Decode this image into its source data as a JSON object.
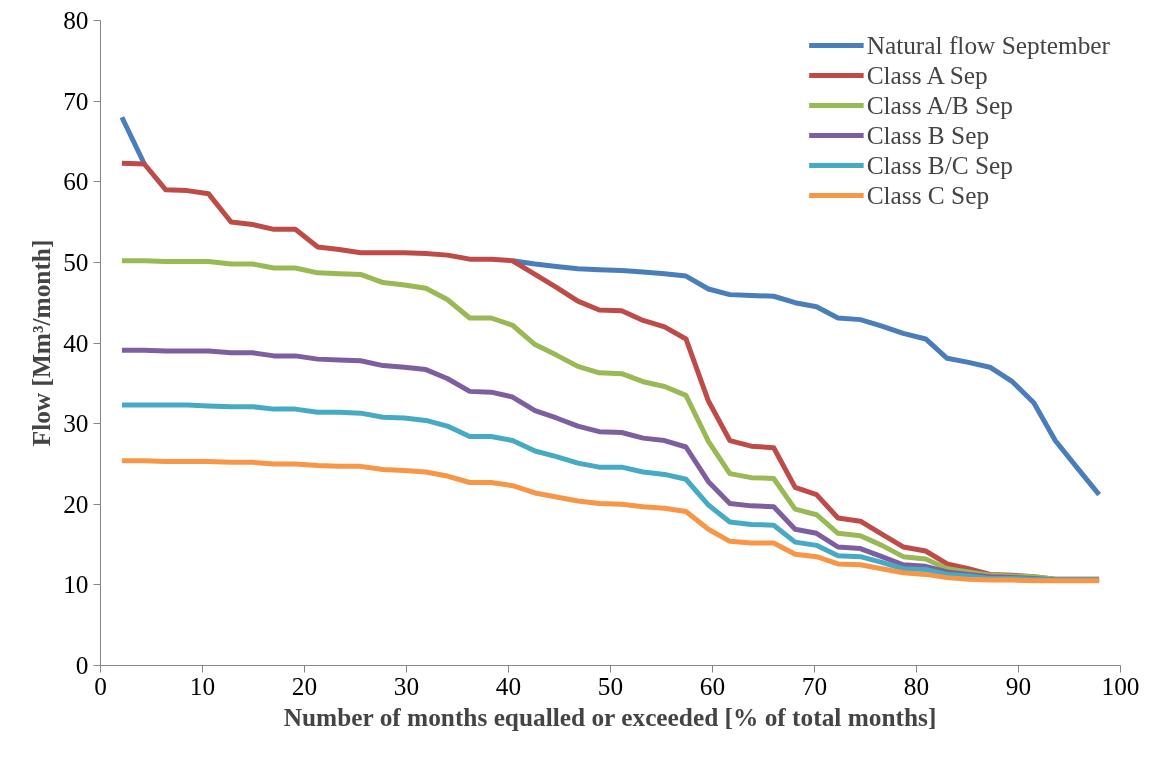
{
  "chart_data": {
    "type": "line",
    "xlabel": "Number of months equalled or exceeded [% of total months]",
    "ylabel": "Flow [Mm³/month]",
    "x": [
      2.1,
      4.3,
      6.4,
      8.5,
      10.6,
      12.8,
      14.9,
      17.0,
      19.1,
      21.3,
      23.4,
      25.5,
      27.7,
      29.8,
      31.9,
      34.0,
      36.2,
      38.3,
      40.4,
      42.6,
      44.7,
      46.8,
      48.9,
      51.1,
      53.2,
      55.3,
      57.4,
      59.6,
      61.7,
      63.8,
      66.0,
      68.1,
      70.2,
      72.3,
      74.5,
      76.6,
      78.7,
      80.9,
      83.0,
      85.1,
      87.2,
      89.4,
      91.5,
      93.6,
      95.7,
      97.9
    ],
    "xlim": [
      0,
      100
    ],
    "xticks": [
      0,
      10,
      20,
      30,
      40,
      50,
      60,
      70,
      80,
      90,
      100
    ],
    "ylim": [
      0,
      80
    ],
    "yticks": [
      0,
      10,
      20,
      30,
      40,
      50,
      60,
      70,
      80
    ],
    "grid": false,
    "legend": "top right",
    "marker": "none",
    "line_style": "solid",
    "series": [
      {
        "name": "Natural flow September",
        "color": "#4a7ebb",
        "values": [
          68.0,
          62.2,
          null,
          null,
          null,
          null,
          null,
          null,
          null,
          null,
          null,
          null,
          null,
          null,
          null,
          null,
          null,
          null,
          50.2,
          49.8,
          49.5,
          49.2,
          49.1,
          49.0,
          48.8,
          48.6,
          48.3,
          46.7,
          46.0,
          45.9,
          45.8,
          45.0,
          44.5,
          43.1,
          42.9,
          42.1,
          41.2,
          40.5,
          38.1,
          37.6,
          37.0,
          35.2,
          32.6,
          27.9,
          24.6,
          21.2
        ]
      },
      {
        "name": "Class A Sep",
        "color": "#be4b48",
        "values": [
          62.3,
          62.2,
          59.0,
          58.9,
          58.5,
          55.0,
          54.7,
          54.1,
          54.1,
          51.9,
          51.6,
          51.2,
          51.2,
          51.2,
          51.1,
          50.9,
          50.4,
          50.4,
          50.2,
          48.5,
          46.9,
          45.2,
          44.1,
          44.0,
          42.8,
          42.0,
          40.5,
          32.8,
          27.9,
          27.2,
          27.0,
          22.1,
          21.2,
          18.3,
          17.9,
          16.3,
          14.7,
          14.2,
          12.6,
          12.0,
          11.3,
          11.2,
          11.0,
          10.7,
          10.7,
          10.7
        ]
      },
      {
        "name": "Class A/B Sep",
        "color": "#98b954",
        "values": [
          50.2,
          50.2,
          50.1,
          50.1,
          50.1,
          49.8,
          49.8,
          49.3,
          49.3,
          48.7,
          48.6,
          48.5,
          47.5,
          47.2,
          46.8,
          45.4,
          43.1,
          43.1,
          42.2,
          39.8,
          38.5,
          37.1,
          36.3,
          36.2,
          35.2,
          34.6,
          33.5,
          27.8,
          23.8,
          23.3,
          23.2,
          19.4,
          18.7,
          16.4,
          16.1,
          14.9,
          13.5,
          13.2,
          12.0,
          11.6,
          11.2,
          11.1,
          11.0,
          10.7,
          10.7,
          10.7
        ]
      },
      {
        "name": "Class B Sep",
        "color": "#7d5fa0",
        "values": [
          39.1,
          39.1,
          39.0,
          39.0,
          39.0,
          38.8,
          38.8,
          38.4,
          38.4,
          38.0,
          37.9,
          37.8,
          37.2,
          37.0,
          36.7,
          35.6,
          34.0,
          33.9,
          33.3,
          31.6,
          30.7,
          29.7,
          29.0,
          28.9,
          28.2,
          27.9,
          27.1,
          22.8,
          20.1,
          19.8,
          19.7,
          16.9,
          16.4,
          14.7,
          14.5,
          13.5,
          12.5,
          12.3,
          11.6,
          11.3,
          11.0,
          10.9,
          10.8,
          10.6,
          10.6,
          10.6
        ]
      },
      {
        "name": "Class B/C Sep",
        "color": "#46aac5",
        "values": [
          32.3,
          32.3,
          32.3,
          32.3,
          32.2,
          32.1,
          32.1,
          31.8,
          31.8,
          31.4,
          31.4,
          31.3,
          30.8,
          30.7,
          30.4,
          29.7,
          28.4,
          28.4,
          27.9,
          26.6,
          25.9,
          25.1,
          24.6,
          24.6,
          24.0,
          23.7,
          23.1,
          19.9,
          17.8,
          17.5,
          17.4,
          15.3,
          14.9,
          13.6,
          13.5,
          12.8,
          12.0,
          11.9,
          11.3,
          11.1,
          10.8,
          10.8,
          10.7,
          10.6,
          10.6,
          10.6
        ]
      },
      {
        "name": "Class C Sep",
        "color": "#f79646",
        "values": [
          25.4,
          25.4,
          25.3,
          25.3,
          25.3,
          25.2,
          25.2,
          25.0,
          25.0,
          24.8,
          24.7,
          24.7,
          24.3,
          24.2,
          24.0,
          23.5,
          22.7,
          22.7,
          22.3,
          21.4,
          20.9,
          20.4,
          20.1,
          20.0,
          19.7,
          19.5,
          19.1,
          16.9,
          15.4,
          15.2,
          15.2,
          13.8,
          13.5,
          12.6,
          12.5,
          12.0,
          11.5,
          11.3,
          10.9,
          10.7,
          10.6,
          10.6,
          10.5,
          10.5,
          10.5,
          10.5
        ]
      }
    ]
  }
}
